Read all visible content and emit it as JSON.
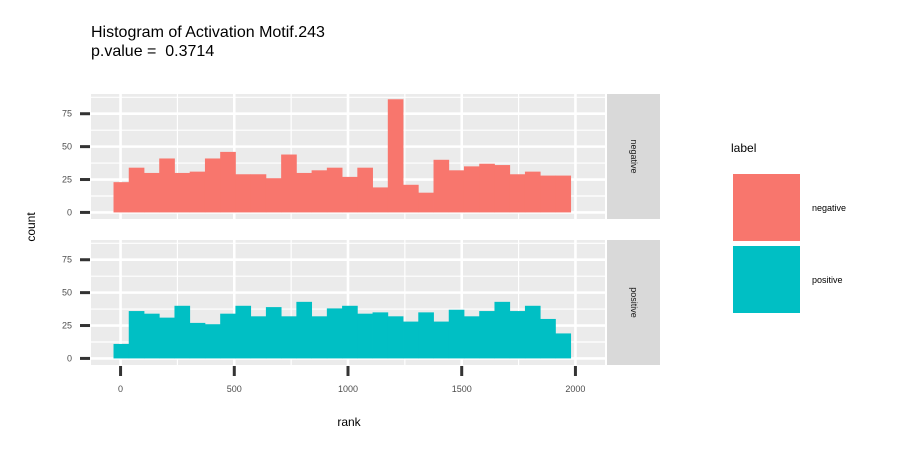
{
  "chart_data": {
    "type": "bar",
    "title": "Histogram of Activation Motif.243",
    "subtitle": "p.value =  0.3714",
    "xlabel": "rank",
    "ylabel": "count",
    "xlim": [
      -130,
      2130
    ],
    "ylim": [
      -5,
      90
    ],
    "x_ticks": [
      0,
      500,
      1000,
      1500,
      2000
    ],
    "y_ticks": [
      0,
      25,
      50,
      75
    ],
    "bin_start": -31,
    "bin_width": 67,
    "grid": true,
    "legend": {
      "title": "label",
      "position": "right"
    },
    "series": [
      {
        "name": "negative",
        "color": "#F8766D",
        "values": [
          23,
          34,
          30,
          41,
          30,
          31,
          41,
          46,
          29,
          29,
          26,
          44,
          30,
          32,
          34,
          27,
          34,
          19,
          86,
          21,
          15,
          40,
          32,
          35,
          37,
          36,
          29,
          31,
          28,
          28
        ]
      },
      {
        "name": "positive",
        "color": "#00BFC4",
        "values": [
          11,
          36,
          34,
          31,
          40,
          27,
          26,
          34,
          40,
          32,
          39,
          32,
          43,
          32,
          38,
          40,
          34,
          35,
          32,
          28,
          35,
          28,
          37,
          32,
          36,
          43,
          36,
          40,
          30,
          19
        ]
      }
    ]
  }
}
